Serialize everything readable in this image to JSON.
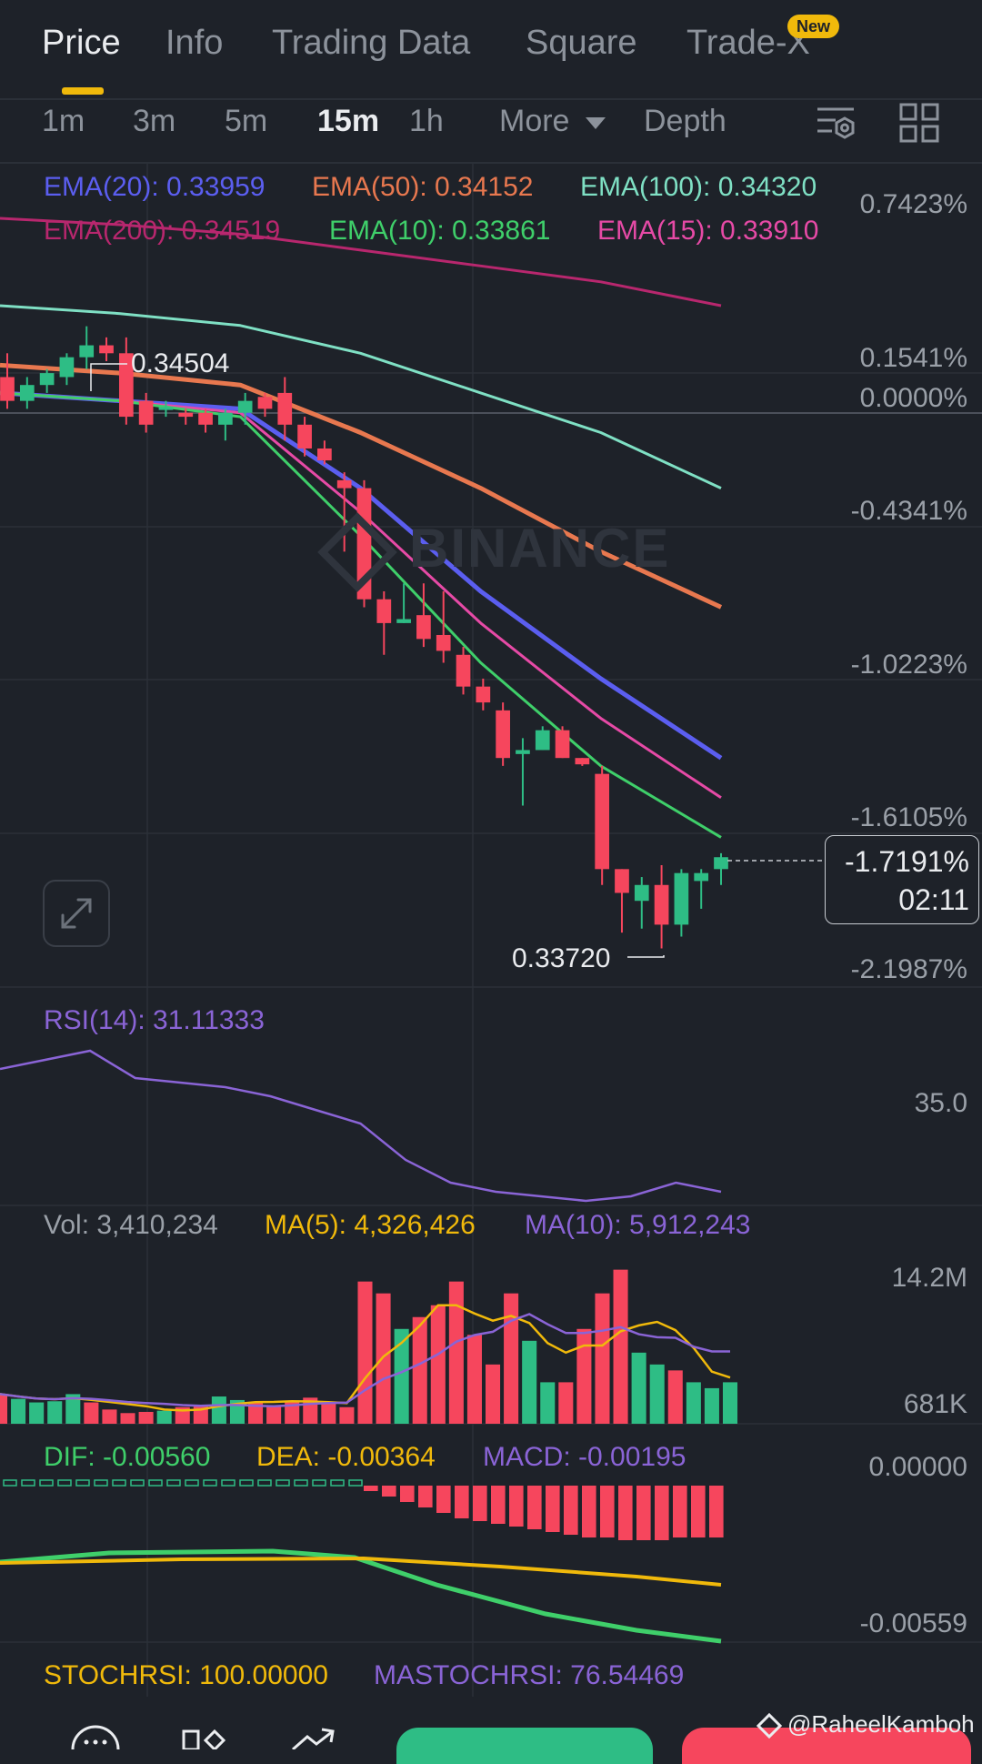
{
  "tabs": [
    {
      "label": "Price",
      "active": true
    },
    {
      "label": "Info"
    },
    {
      "label": "Trading Data"
    },
    {
      "label": "Square"
    },
    {
      "label": "Trade-X",
      "badge": "New"
    }
  ],
  "intervals": {
    "items": [
      "1m",
      "3m",
      "5m",
      "15m",
      "1h"
    ],
    "active": "15m",
    "more_label": "More",
    "depth_label": "Depth"
  },
  "ema_legend": {
    "ema20": "EMA(20): 0.33959",
    "ema50": "EMA(50): 0.34152",
    "ema100": "EMA(100): 0.34320",
    "ema200": "EMA(200): 0.34519",
    "ema10": "EMA(10): 0.33861",
    "ema15": "EMA(15): 0.33910"
  },
  "colors": {
    "ema20": "#5b5ef0",
    "ema50": "#e8784f",
    "ema100": "#7fe0c4",
    "ema200": "#b8276e",
    "ema10": "#3fcf6a",
    "ema15": "#e64aa6",
    "up": "#2ebd85",
    "down": "#f6465d",
    "rsi": "#8a64d6",
    "ma5": "#f0b90b",
    "ma10": "#8a64d6",
    "accent": "#f0b90b"
  },
  "price_axis": {
    "p1": "0.7423%",
    "p2": "0.1541%",
    "p3": "0.0000%",
    "p4": "-0.4341%",
    "p5": "-1.0223%",
    "p6": "-1.6105%",
    "p7": "-2.1987%"
  },
  "high_label": "0.34504",
  "low_label": "0.33720",
  "current": {
    "pct": "-1.7191%",
    "countdown": "02:11"
  },
  "watermark_brand": "BINANCE",
  "rsi": {
    "label": "RSI(14): 31.11333",
    "axis": "35.0"
  },
  "volume": {
    "vol": "Vol: 3,410,234",
    "ma5": "MA(5): 4,326,426",
    "ma10": "MA(10): 5,912,243",
    "axis_top": "14.2M",
    "axis_bottom": "681K"
  },
  "macd": {
    "dif": "DIF: -0.00560",
    "dea": "DEA: -0.00364",
    "macd": "MACD: -0.00195",
    "axis_top": "0.00000",
    "axis_bottom": "-0.00559"
  },
  "stochrsi": {
    "stoch": "STOCHRSI: 100.00000",
    "mastoch": "MASTOCHRSI: 76.54469"
  },
  "credit": "@RaheelKamboh",
  "chart_data": {
    "type": "candlestick",
    "timeframe": "15m",
    "candles": [
      {
        "o": 0.3444,
        "h": 0.3447,
        "l": 0.344,
        "c": 0.3441
      },
      {
        "o": 0.3441,
        "h": 0.3444,
        "l": 0.344,
        "c": 0.3443
      },
      {
        "o": 0.3443,
        "h": 0.3445,
        "l": 0.3442,
        "c": 0.34445
      },
      {
        "o": 0.3444,
        "h": 0.3447,
        "l": 0.3443,
        "c": 0.34465
      },
      {
        "o": 0.34465,
        "h": 0.34504,
        "l": 0.3445,
        "c": 0.3448
      },
      {
        "o": 0.3448,
        "h": 0.3449,
        "l": 0.3446,
        "c": 0.3447
      },
      {
        "o": 0.3447,
        "h": 0.3449,
        "l": 0.3438,
        "c": 0.3439
      },
      {
        "o": 0.3441,
        "h": 0.3442,
        "l": 0.3437,
        "c": 0.3438
      },
      {
        "o": 0.344,
        "h": 0.3441,
        "l": 0.3439,
        "c": 0.34402
      },
      {
        "o": 0.34395,
        "h": 0.344,
        "l": 0.3438,
        "c": 0.3439
      },
      {
        "o": 0.34395,
        "h": 0.344,
        "l": 0.3437,
        "c": 0.3438
      },
      {
        "o": 0.3438,
        "h": 0.344,
        "l": 0.3436,
        "c": 0.34395
      },
      {
        "o": 0.34395,
        "h": 0.3442,
        "l": 0.3438,
        "c": 0.3441
      },
      {
        "o": 0.34415,
        "h": 0.3442,
        "l": 0.3439,
        "c": 0.344
      },
      {
        "o": 0.3442,
        "h": 0.3444,
        "l": 0.3436,
        "c": 0.3438
      },
      {
        "o": 0.3438,
        "h": 0.3439,
        "l": 0.3434,
        "c": 0.3435
      },
      {
        "o": 0.3435,
        "h": 0.3436,
        "l": 0.3433,
        "c": 0.34335
      },
      {
        "o": 0.3431,
        "h": 0.3432,
        "l": 0.3422,
        "c": 0.343
      },
      {
        "o": 0.343,
        "h": 0.3431,
        "l": 0.3415,
        "c": 0.3416
      },
      {
        "o": 0.3416,
        "h": 0.3417,
        "l": 0.3409,
        "c": 0.3413
      },
      {
        "o": 0.3413,
        "h": 0.3418,
        "l": 0.3413,
        "c": 0.34135
      },
      {
        "o": 0.3414,
        "h": 0.3418,
        "l": 0.341,
        "c": 0.3411
      },
      {
        "o": 0.34115,
        "h": 0.3417,
        "l": 0.3408,
        "c": 0.34095
      },
      {
        "o": 0.3409,
        "h": 0.341,
        "l": 0.3404,
        "c": 0.3405
      },
      {
        "o": 0.3405,
        "h": 0.3406,
        "l": 0.3402,
        "c": 0.3403
      },
      {
        "o": 0.3402,
        "h": 0.3403,
        "l": 0.3395,
        "c": 0.3396
      },
      {
        "o": 0.33965,
        "h": 0.33985,
        "l": 0.339,
        "c": 0.3397
      },
      {
        "o": 0.3397,
        "h": 0.34,
        "l": 0.3397,
        "c": 0.33995
      },
      {
        "o": 0.33995,
        "h": 0.34,
        "l": 0.3396,
        "c": 0.3396
      },
      {
        "o": 0.3396,
        "h": 0.3396,
        "l": 0.3395,
        "c": 0.33952
      },
      {
        "o": 0.3394,
        "h": 0.3395,
        "l": 0.338,
        "c": 0.3382
      },
      {
        "o": 0.3382,
        "h": 0.3382,
        "l": 0.3374,
        "c": 0.3379
      },
      {
        "o": 0.3378,
        "h": 0.3381,
        "l": 0.33745,
        "c": 0.338
      },
      {
        "o": 0.338,
        "h": 0.33825,
        "l": 0.3372,
        "c": 0.3375
      },
      {
        "o": 0.3375,
        "h": 0.3382,
        "l": 0.33735,
        "c": 0.33815
      },
      {
        "o": 0.33805,
        "h": 0.3382,
        "l": 0.3377,
        "c": 0.33815
      },
      {
        "o": 0.3382,
        "h": 0.3384,
        "l": 0.338,
        "c": 0.33835
      }
    ],
    "ema_series": {
      "ema200": [
        0.3464,
        0.34632,
        0.3462,
        0.346,
        0.3458,
        0.3456,
        0.3453
      ],
      "ema100": [
        0.3453,
        0.3452,
        0.34505,
        0.3447,
        0.3442,
        0.3437,
        0.343
      ],
      "ema50": [
        0.34455,
        0.34445,
        0.3443,
        0.3437,
        0.343,
        0.3422,
        0.3415
      ],
      "ema20": [
        0.3442,
        0.3441,
        0.344,
        0.343,
        0.3417,
        0.3406,
        0.3396
      ],
      "ema15": [
        0.3442,
        0.3441,
        0.34395,
        0.3427,
        0.3413,
        0.3401,
        0.3391
      ],
      "ema10": [
        0.3442,
        0.3441,
        0.3439,
        0.3424,
        0.3408,
        0.3395,
        0.3386
      ]
    },
    "rsi": [
      58,
      60,
      62,
      56,
      55,
      54,
      52,
      49,
      46,
      38,
      33,
      31,
      30,
      29,
      30,
      33,
      31
    ],
    "volume": [
      2.5,
      2.1,
      1.8,
      1.9,
      2.5,
      1.8,
      1.2,
      0.9,
      1.0,
      1.1,
      1.4,
      1.6,
      2.3,
      2.0,
      1.8,
      1.5,
      1.9,
      2.2,
      1.7,
      1.4,
      12.0,
      11.0,
      8.0,
      9.0,
      10.0,
      12.0,
      7.5,
      5.0,
      11.0,
      7.0,
      3.5,
      3.5,
      8.0,
      11.0,
      13.0,
      6.0,
      5.0,
      4.5,
      3.5,
      3.0,
      3.5
    ],
    "volume_unit": "M",
    "macd_hist": [
      -0.0002,
      -0.0004,
      -0.0006,
      -0.0008,
      -0.001,
      -0.0012,
      -0.0013,
      -0.0014,
      -0.0015,
      -0.0016,
      -0.0017,
      -0.0018,
      -0.0019,
      -0.0019,
      -0.002,
      -0.002,
      -0.002,
      -0.0019,
      -0.0019,
      -0.0019
    ]
  }
}
